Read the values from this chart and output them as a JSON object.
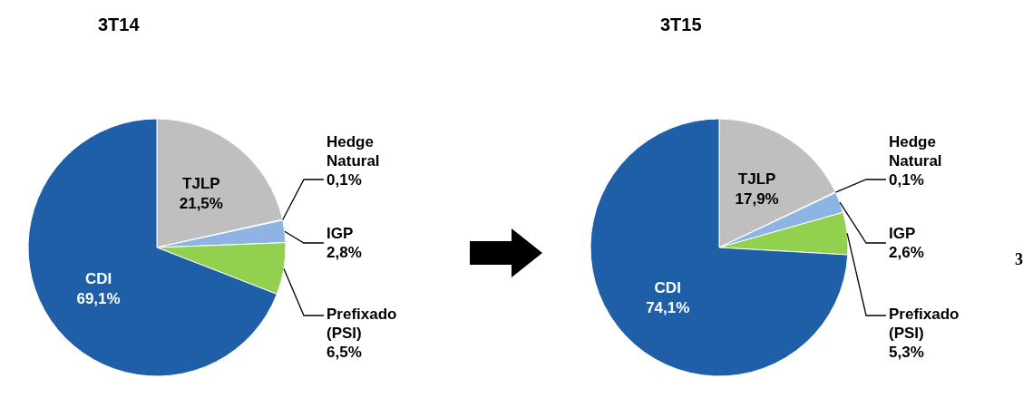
{
  "chart_data": [
    {
      "type": "pie",
      "title": "3T14",
      "categories": [
        "TJLP",
        "Hedge Natural",
        "IGP",
        "Prefixado (PSI)",
        "CDI"
      ],
      "values": [
        21.5,
        0.1,
        2.8,
        6.5,
        69.1
      ],
      "value_labels": [
        "21,5%",
        "0,1%",
        "2,8%",
        "6,5%",
        "69,1%"
      ],
      "colors": [
        "#bfbfbf",
        "#6f9fd8",
        "#8db4e2",
        "#92d050",
        "#1f5fa8"
      ]
    },
    {
      "type": "pie",
      "title": "3T15",
      "categories": [
        "TJLP",
        "Hedge Natural",
        "IGP",
        "Prefixado (PSI)",
        "CDI"
      ],
      "values": [
        17.9,
        0.1,
        2.6,
        5.3,
        74.1
      ],
      "value_labels": [
        "17,9%",
        "0,1%",
        "2,6%",
        "5,3%",
        "74,1%"
      ],
      "colors": [
        "#bfbfbf",
        "#6f9fd8",
        "#8db4e2",
        "#92d050",
        "#1f5fa8"
      ],
      "annotations": [
        "3"
      ]
    }
  ]
}
